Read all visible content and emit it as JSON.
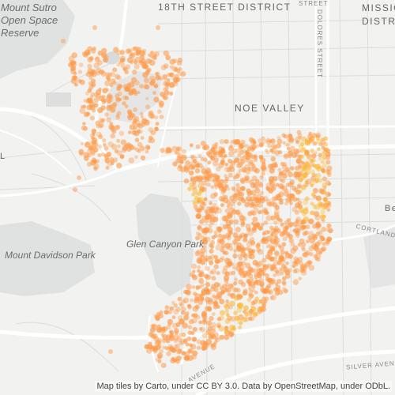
{
  "map": {
    "labels": {
      "mount_sutro": "Mount Sutro\nOpen Space\nReserve",
      "mount_davidson": "Mount Davidson Park",
      "glen_canyon": "Glen Canyon Park",
      "noe_valley": "NOE VALLEY",
      "district_18th": "18TH STREET DISTRICT",
      "mission": "MISSIO\nDISTRI",
      "dolores": "DOLORES STREET",
      "cortland": "CORTLAND",
      "silver": "SILVER AVEN",
      "avenue": "AVENUE",
      "be": "Be",
      "l": "L",
      "street_top": "STREET"
    },
    "attribution": "Map tiles by Carto, under CC BY 3.0. Data by OpenStreetMap, under ODbL.",
    "colors": {
      "base": "#f2f2f0",
      "park": "#e0e2e1",
      "road": "#ffffff",
      "street": "#dcdcdc",
      "point_fill": "#ff9a4a",
      "point_dense": "#ffb62e"
    }
  }
}
